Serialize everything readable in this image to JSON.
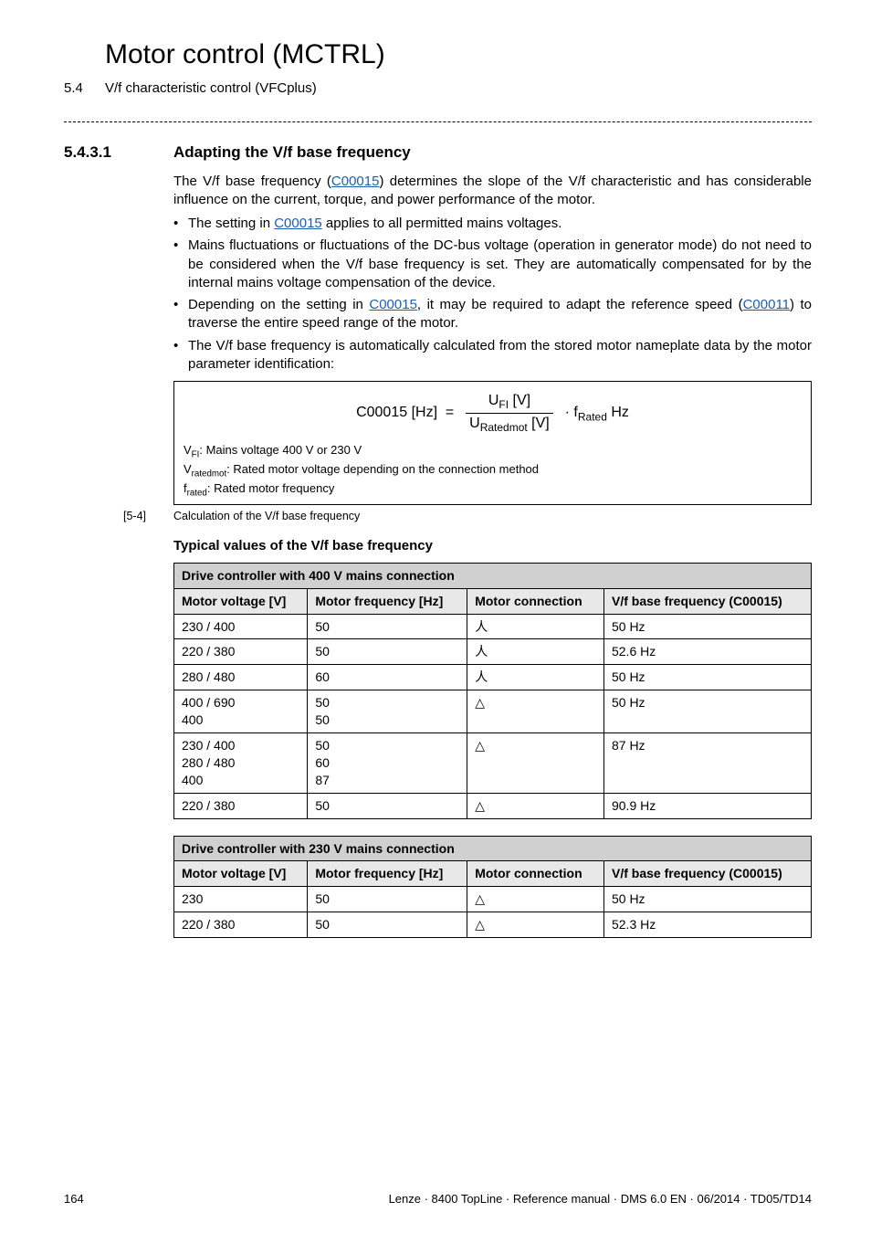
{
  "chapter": {
    "number": "5",
    "title": "Motor control (MCTRL)"
  },
  "subsection": {
    "number": "5.4",
    "title": "V/f characteristic control (VFCplus)"
  },
  "section": {
    "number": "5.4.3.1",
    "title": "Adapting the V/f base frequency"
  },
  "intro": {
    "p1a": "The V/f base frequency (",
    "p1_link": "C00015",
    "p1b": ") determines the slope of the V/f characteristic and has considerable influence on the current, torque, and power performance of the motor.",
    "b1a": "The setting in ",
    "b1_link": "C00015",
    "b1b": " applies to all permitted mains voltages.",
    "b2": "Mains fluctuations or fluctuations of the DC-bus voltage (operation in generator mode) do not need to be considered when the V/f base frequency is set. They are automatically compensated for by the internal mains voltage compensation of the device.",
    "b3a": "Depending on the setting in ",
    "b3_link1": "C00015",
    "b3b": ", it may be required to adapt the reference speed (",
    "b3_link2": "C00011",
    "b3c": ") to traverse the entire speed range of the motor.",
    "b4": "The V/f base frequency is automatically calculated from the stored motor nameplate data by the motor parameter identification:"
  },
  "formula": {
    "lhs": "C00015 [Hz]",
    "num": "U",
    "num_sub": "FI",
    "num_unit": " [V]",
    "den": "U",
    "den_sub": "Ratedmot",
    "den_unit": " [V]",
    "rhs_f": "f",
    "rhs_sub": "Rated",
    "rhs_unit": " Hz",
    "note1a": "V",
    "note1_sub": "FI",
    "note1b": ": Mains voltage 400 V or 230 V",
    "note2a": "V",
    "note2_sub": "ratedmot",
    "note2b": ": Rated motor voltage depending on the connection method",
    "note3a": "f",
    "note3_sub": "rated",
    "note3b": ": Rated motor frequency"
  },
  "caption": {
    "tag": "[5-4]",
    "text": "Calculation of the V/f base frequency"
  },
  "subhead": "Typical values of the V/f base frequency",
  "tables": {
    "columns": [
      "Motor voltage [V]",
      "Motor frequency [Hz]",
      "Motor connection",
      "V/f base frequency (C00015)"
    ],
    "t1": {
      "title": "Drive controller with 400 V mains connection",
      "rows": [
        [
          "230 / 400",
          "50",
          "star",
          "50 Hz"
        ],
        [
          "220 / 380",
          "50",
          "star",
          "52.6 Hz"
        ],
        [
          "280 / 480",
          "60",
          "star",
          "50 Hz"
        ],
        [
          "400 / 690\n400",
          "50\n50",
          "delta",
          "50 Hz"
        ],
        [
          "230 / 400\n280 / 480\n400",
          "50\n60\n87",
          "delta",
          "87 Hz"
        ],
        [
          "220 / 380",
          "50",
          "delta",
          "90.9 Hz"
        ]
      ]
    },
    "t2": {
      "title": "Drive controller with 230 V mains connection",
      "rows": [
        [
          "230",
          "50",
          "delta",
          "50 Hz"
        ],
        [
          "220 / 380",
          "50",
          "delta",
          "52.3 Hz"
        ]
      ]
    }
  },
  "symbols": {
    "star": "人",
    "delta": "△"
  },
  "footer": {
    "page": "164",
    "ref": "Lenze · 8400 TopLine · Reference manual · DMS 6.0 EN · 06/2014 · TD05/TD14"
  },
  "colors": {
    "link": "#1a5fb4",
    "title_bg": "#d0d0d0",
    "head_bg": "#e8e8e8"
  }
}
